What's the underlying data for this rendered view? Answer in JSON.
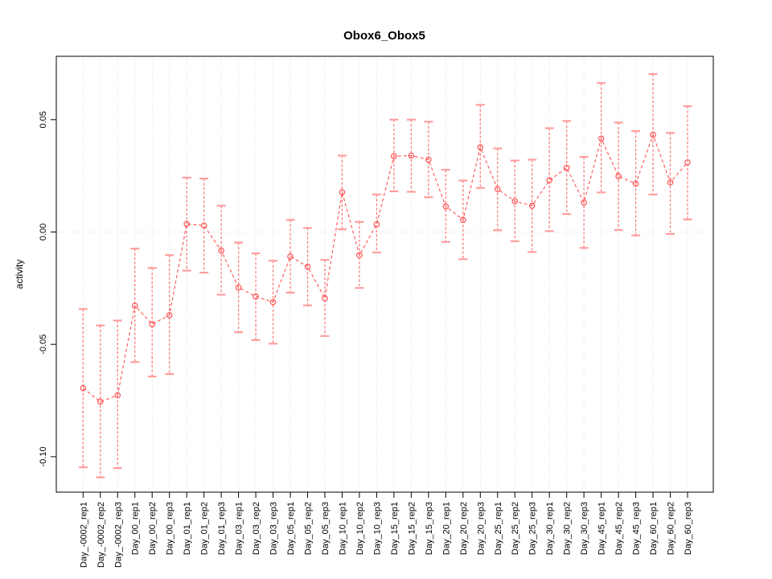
{
  "chart_data": {
    "type": "line",
    "title": "Obox6_Obox5",
    "ylabel": "activity",
    "xlabel": "",
    "legend_position": "none",
    "marker": "open-circle",
    "line_style": "dashed",
    "grid": {
      "vertical_dotted_per_category": true,
      "horizontal_dotted_at_zero": true
    },
    "ylim": [
      -0.116,
      0.078
    ],
    "ytick_values": [
      -0.1,
      -0.05,
      0.0,
      0.05
    ],
    "ytick_labels": [
      "-0.10",
      "-0.05",
      "0.00",
      "0.05"
    ],
    "categories": [
      "Day_-0002_rep1",
      "Day_-0002_rep2",
      "Day_-0002_rep3",
      "Day_00_rep1",
      "Day_00_rep2",
      "Day_00_rep3",
      "Day_01_rep1",
      "Day_01_rep2",
      "Day_01_rep3",
      "Day_03_rep1",
      "Day_03_rep2",
      "Day_03_rep3",
      "Day_05_rep1",
      "Day_05_rep2",
      "Day_05_rep3",
      "Day_10_rep1",
      "Day_10_rep2",
      "Day_10_rep3",
      "Day_15_rep1",
      "Day_15_rep2",
      "Day_15_rep3",
      "Day_20_rep1",
      "Day_20_rep2",
      "Day_20_rep3",
      "Day_25_rep1",
      "Day_25_rep2",
      "Day_25_rep3",
      "Day_30_rep1",
      "Day_30_rep2",
      "Day_30_rep3",
      "Day_45_rep1",
      "Day_45_rep2",
      "Day_45_rep3",
      "Day_60_rep1",
      "Day_60_rep2",
      "Day_60_rep3"
    ],
    "series": [
      {
        "name": "activity",
        "values": [
          -0.0695,
          -0.0755,
          -0.0727,
          -0.0328,
          -0.041,
          -0.037,
          0.0036,
          0.0029,
          -0.0083,
          -0.0247,
          -0.0287,
          -0.0312,
          -0.0109,
          -0.0154,
          -0.0295,
          0.0177,
          -0.0103,
          0.0034,
          0.0337,
          0.034,
          0.0322,
          0.0114,
          0.0054,
          0.0377,
          0.0191,
          0.0137,
          0.0117,
          0.023,
          0.0286,
          0.0131,
          0.0416,
          0.0248,
          0.0215,
          0.0433,
          0.0221,
          0.031
        ],
        "error_upper": [
          -0.0343,
          -0.0416,
          -0.0394,
          -0.0074,
          -0.016,
          -0.0103,
          0.0242,
          0.0238,
          0.0117,
          -0.0047,
          -0.0095,
          -0.0128,
          0.0054,
          0.0018,
          -0.0124,
          0.034,
          0.0045,
          0.0167,
          0.05,
          0.05,
          0.0491,
          0.0277,
          0.0229,
          0.0566,
          0.0372,
          0.0318,
          0.0322,
          0.0462,
          0.0494,
          0.0334,
          0.0663,
          0.0487,
          0.0449,
          0.0703,
          0.0441,
          0.056
        ],
        "error_lower": [
          -0.1047,
          -0.1092,
          -0.1051,
          -0.0579,
          -0.0643,
          -0.0632,
          -0.0172,
          -0.0181,
          -0.0279,
          -0.0446,
          -0.0481,
          -0.0497,
          -0.027,
          -0.0327,
          -0.0463,
          0.0012,
          -0.0249,
          -0.0091,
          0.0181,
          0.0179,
          0.0155,
          -0.0044,
          -0.0121,
          0.0196,
          0.0008,
          -0.0041,
          -0.0089,
          0.0004,
          0.008,
          -0.0071,
          0.0176,
          0.0009,
          -0.0015,
          0.0167,
          -0.0009,
          0.0056
        ]
      }
    ],
    "colors": {
      "point_line": "#ff5252",
      "error_bar_line": "#ff7a7a",
      "error_bar_cap": "#ff9e9e",
      "grid": "#d8d8d8",
      "axis": "#000000",
      "background": "#ffffff"
    }
  }
}
